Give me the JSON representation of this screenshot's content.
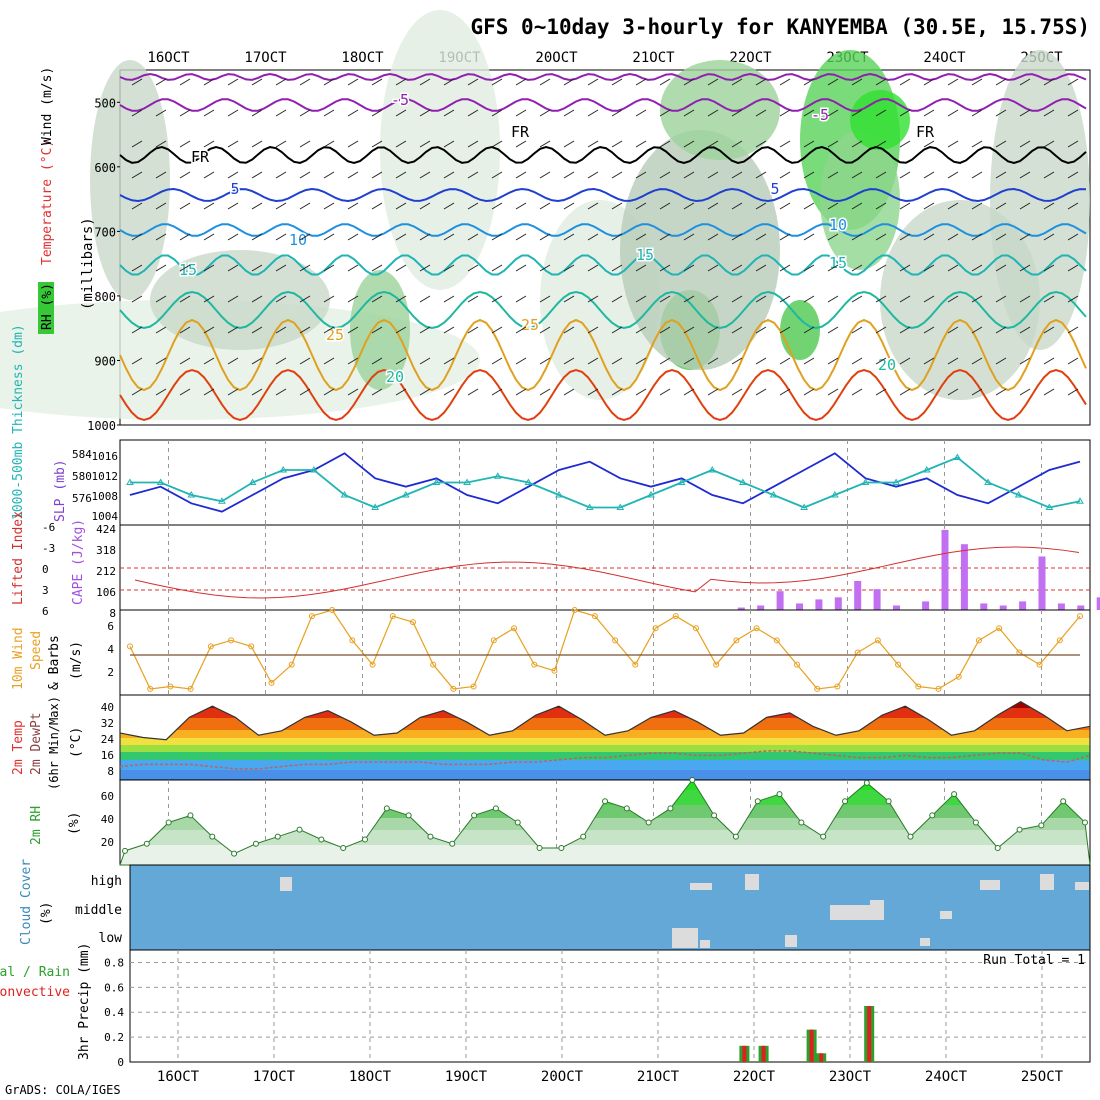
{
  "title": "GFS 0~10day 3-hourly for KANYEMBA (30.5E, 15.75S)",
  "footer": "GrADS: COLA/IGES",
  "date_labels": [
    "16OCT",
    "17OCT",
    "18OCT",
    "19OCT",
    "20OCT",
    "21OCT",
    "22OCT",
    "23OCT",
    "24OCT",
    "25OCT"
  ],
  "colors": {
    "rh_green": "#37c837",
    "temp_red": "#e03030",
    "wind_blue": "#1e50c8",
    "slp_blue": "#1e2ad2",
    "thick_cyan": "#20b4b4",
    "cape_purple": "#c070f0",
    "li_red": "#d03030",
    "wind_orange": "#e8a020",
    "cloud_blue": "#64a8d8",
    "precip_green": "#2ca02c",
    "precip_red": "#e02020"
  },
  "panels": {
    "upper": {
      "ylabel_units": "(millibars)",
      "ticks": [
        "500",
        "600",
        "700",
        "800",
        "900",
        "1000"
      ],
      "label_rh": "RH (%)",
      "label_temp": "Temperature (°C)",
      "label_wind": "Wind (m/s)"
    },
    "slp": {
      "label_thick": "1000-500mb Thickness (dm)",
      "label_slp": "SLP (mb)",
      "thick_ticks": [
        "584",
        "580",
        "576"
      ],
      "slp_ticks": [
        "1016",
        "1012",
        "1008",
        "1004"
      ]
    },
    "cape": {
      "label_li": "Lifted Index",
      "label_cape": "CAPE (J/kg)",
      "li_ticks": [
        "-6",
        "-3",
        "0",
        "3",
        "6"
      ],
      "cape_ticks": [
        "424",
        "318",
        "212",
        "106",
        "8"
      ]
    },
    "wind10": {
      "label1": "10m Wind",
      "label2": "Speed",
      "label3": "& Barbs",
      "units": "(m/s)",
      "ticks": [
        "6",
        "4",
        "2"
      ]
    },
    "temp2m": {
      "label1": "2m Temp",
      "label2": "2m DewPt",
      "label3": "(6hr Min/Max)",
      "units": "(°C)",
      "ticks": [
        "40",
        "32",
        "24",
        "16",
        "8"
      ]
    },
    "rh2m": {
      "label": "2m RH",
      "units": "(%)",
      "ticks": [
        "60",
        "40",
        "20"
      ]
    },
    "cloud": {
      "label1": "Cloud Cover",
      "label2": "(%)",
      "levels": [
        "high",
        "middle",
        "low"
      ]
    },
    "precip": {
      "label1": "Total / Rain",
      "label2": "Convective",
      "ylabel": "3hr Precip (mm)",
      "ticks": [
        "0.8",
        "0.6",
        "0.4",
        "0.2",
        "0"
      ],
      "run_total": "Run Total = 1"
    }
  },
  "chart_data": [
    {
      "type": "line",
      "title": "Temperature (°C) isotherms",
      "contour_labels": [
        "-5",
        "FR",
        "5",
        "10",
        "15",
        "20",
        "25"
      ],
      "ylabel": "millibars",
      "ylim": [
        1000,
        450
      ]
    },
    {
      "type": "line",
      "title": "SLP / Thickness",
      "series": [
        {
          "name": "SLP (mb)",
          "values": [
            1008,
            1010,
            1006,
            1004,
            1008,
            1012,
            1014,
            1018,
            1012,
            1010,
            1012,
            1008,
            1006,
            1010,
            1014,
            1016,
            1012,
            1010,
            1012,
            1008,
            1006,
            1010,
            1014,
            1018,
            1012,
            1010,
            1012,
            1008,
            1006,
            1010,
            1014,
            1016
          ]
        },
        {
          "name": "1000-500mb Thickness (dm)",
          "values": [
            580,
            580,
            578,
            577,
            580,
            582,
            582,
            578,
            576,
            578,
            580,
            580,
            581,
            580,
            578,
            576,
            576,
            578,
            580,
            582,
            580,
            578,
            576,
            578,
            580,
            580,
            582,
            584,
            580,
            578,
            576,
            577
          ]
        }
      ]
    },
    {
      "type": "bar",
      "title": "CAPE (J/kg)",
      "bars": [
        {
          "x": "21.9",
          "v": 20
        },
        {
          "x": "22.1",
          "v": 30
        },
        {
          "x": "22.3",
          "v": 100
        },
        {
          "x": "22.5",
          "v": 40
        },
        {
          "x": "22.7",
          "v": 60
        },
        {
          "x": "22.9",
          "v": 70
        },
        {
          "x": "23.1",
          "v": 150
        },
        {
          "x": "23.3",
          "v": 110
        },
        {
          "x": "23.5",
          "v": 30
        },
        {
          "x": "23.8",
          "v": 50
        },
        {
          "x": "24.0",
          "v": 400
        },
        {
          "x": "24.2",
          "v": 330
        },
        {
          "x": "24.4",
          "v": 40
        },
        {
          "x": "24.6",
          "v": 30
        },
        {
          "x": "24.8",
          "v": 50
        },
        {
          "x": "25.0",
          "v": 270
        },
        {
          "x": "25.2",
          "v": 40
        },
        {
          "x": "25.4",
          "v": 30
        },
        {
          "x": "25.6",
          "v": 70
        }
      ],
      "ylim": [
        8,
        424
      ]
    },
    {
      "type": "line",
      "title": "10m Wind Speed",
      "ylabel": "m/s",
      "ylim": [
        0.5,
        7.5
      ],
      "values": [
        4.5,
        1,
        1.2,
        1,
        4.5,
        5,
        4.5,
        1.5,
        3,
        7,
        7.5,
        5,
        3,
        7,
        6.5,
        3,
        1,
        1.2,
        5,
        6,
        3,
        2.5,
        7.5,
        7,
        5,
        3,
        6,
        7,
        6,
        3,
        5,
        6,
        5,
        3,
        1,
        1.2,
        4,
        5,
        3,
        1.2,
        1,
        2,
        5,
        6,
        4,
        3,
        5,
        7
      ]
    },
    {
      "type": "area",
      "title": "2m Temp",
      "ylabel": "°C",
      "ylim": [
        4,
        42
      ],
      "temp_values": [
        25,
        23,
        22,
        32,
        37,
        32,
        24,
        26,
        32,
        35,
        30,
        24,
        25,
        32,
        35,
        30,
        24,
        26,
        33,
        37,
        31,
        24,
        26,
        32,
        35,
        30,
        24,
        25,
        32,
        34,
        28,
        24,
        26,
        33,
        37,
        31,
        24,
        26,
        33,
        39,
        33,
        26,
        28
      ],
      "dewpt_values": [
        10,
        11,
        11,
        11,
        10,
        9,
        9,
        10,
        11,
        11,
        12,
        12,
        12,
        12,
        11,
        11,
        11,
        12,
        12,
        13,
        14,
        14,
        15,
        16,
        16,
        15,
        15,
        16,
        17,
        17,
        16,
        15,
        14,
        14,
        15,
        14,
        14,
        15,
        16,
        16,
        13,
        12,
        15
      ]
    },
    {
      "type": "area",
      "title": "2m RH",
      "ylabel": "%",
      "ylim": [
        10,
        70
      ],
      "values": [
        20,
        25,
        40,
        45,
        30,
        18,
        25,
        30,
        35,
        28,
        22,
        28,
        50,
        45,
        30,
        25,
        45,
        50,
        40,
        22,
        22,
        30,
        55,
        50,
        40,
        50,
        70,
        45,
        30,
        55,
        60,
        40,
        30,
        55,
        68,
        55,
        30,
        45,
        60,
        40,
        22,
        35,
        38,
        55,
        40
      ]
    },
    {
      "type": "bar",
      "title": "3hr Precip (mm)",
      "ylim": [
        0,
        0.9
      ],
      "bars": [
        {
          "x": "21.9",
          "v": 0.13
        },
        {
          "x": "22.1",
          "v": 0.13
        },
        {
          "x": "22.6",
          "v": 0.26
        },
        {
          "x": "22.7",
          "v": 0.07
        },
        {
          "x": "23.2",
          "v": 0.45
        }
      ]
    }
  ]
}
